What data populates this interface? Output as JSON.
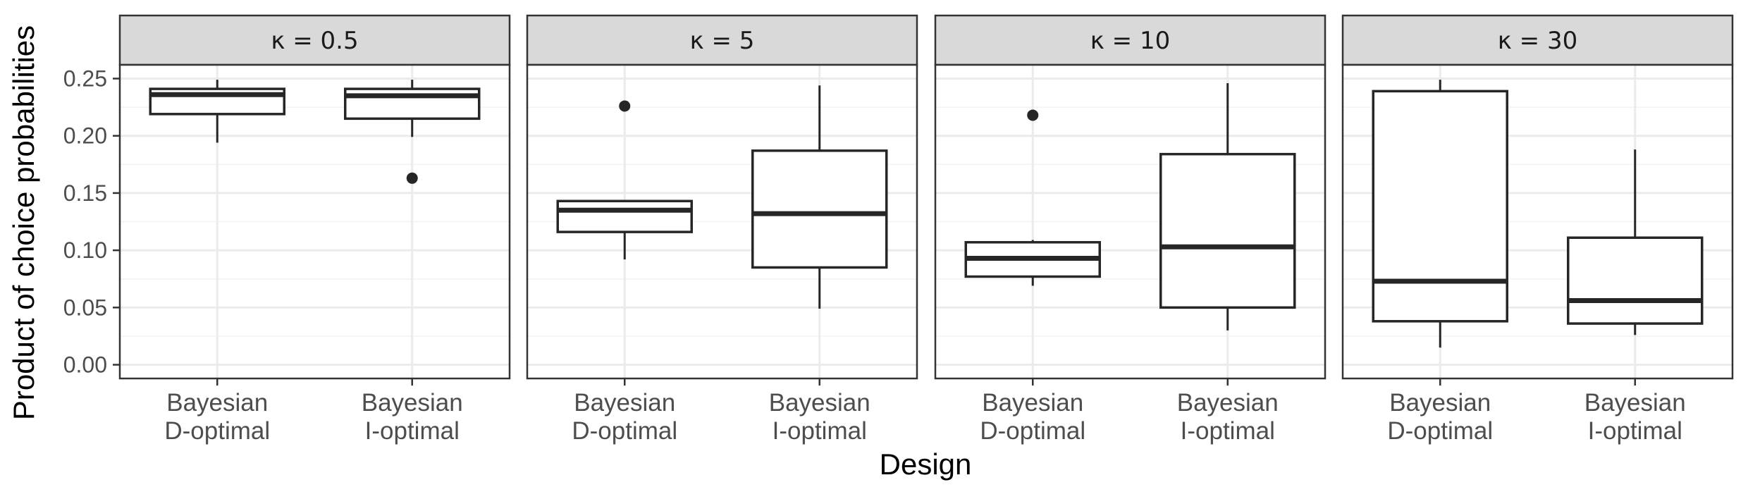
{
  "chart_data": {
    "type": "boxplot",
    "xlabel": "Design",
    "ylabel": "Product of choice probabilities",
    "ylim": [
      -0.012,
      0.262
    ],
    "yticks": [
      0.0,
      0.05,
      0.1,
      0.15,
      0.2,
      0.25
    ],
    "ytick_labels": [
      "0.00",
      "0.05",
      "0.10",
      "0.15",
      "0.20",
      "0.25"
    ],
    "grid": true,
    "categories": [
      [
        "Bayesian",
        "D-optimal"
      ],
      [
        "Bayesian",
        "I-optimal"
      ]
    ],
    "panels": [
      {
        "label": "κ = 0.5",
        "boxes": [
          {
            "category": "Bayesian D-optimal",
            "min": 0.194,
            "q1": 0.219,
            "median": 0.236,
            "q3": 0.241,
            "max": 0.249,
            "outliers": []
          },
          {
            "category": "Bayesian I-optimal",
            "min": 0.199,
            "q1": 0.215,
            "median": 0.235,
            "q3": 0.241,
            "max": 0.249,
            "outliers": [
              0.163
            ]
          }
        ]
      },
      {
        "label": "κ = 5",
        "boxes": [
          {
            "category": "Bayesian D-optimal",
            "min": 0.092,
            "q1": 0.116,
            "median": 0.135,
            "q3": 0.143,
            "max": 0.143,
            "outliers": [
              0.226
            ]
          },
          {
            "category": "Bayesian I-optimal",
            "min": 0.049,
            "q1": 0.085,
            "median": 0.132,
            "q3": 0.187,
            "max": 0.244,
            "outliers": []
          }
        ]
      },
      {
        "label": "κ = 10",
        "boxes": [
          {
            "category": "Bayesian D-optimal",
            "min": 0.069,
            "q1": 0.077,
            "median": 0.093,
            "q3": 0.107,
            "max": 0.109,
            "outliers": [
              0.218
            ]
          },
          {
            "category": "Bayesian I-optimal",
            "min": 0.03,
            "q1": 0.05,
            "median": 0.103,
            "q3": 0.184,
            "max": 0.246,
            "outliers": []
          }
        ]
      },
      {
        "label": "κ = 30",
        "boxes": [
          {
            "category": "Bayesian D-optimal",
            "min": 0.015,
            "q1": 0.038,
            "median": 0.073,
            "q3": 0.239,
            "max": 0.249,
            "outliers": []
          },
          {
            "category": "Bayesian I-optimal",
            "min": 0.026,
            "q1": 0.036,
            "median": 0.056,
            "q3": 0.111,
            "max": 0.188,
            "outliers": []
          }
        ]
      }
    ]
  },
  "colors": {
    "strip_fill": "#d9d9d9",
    "panel_border": "#333333",
    "grid_major": "#ebebeb",
    "grid_minor": "#f2f2f2",
    "box_stroke": "#262626",
    "outlier": "#262626"
  }
}
